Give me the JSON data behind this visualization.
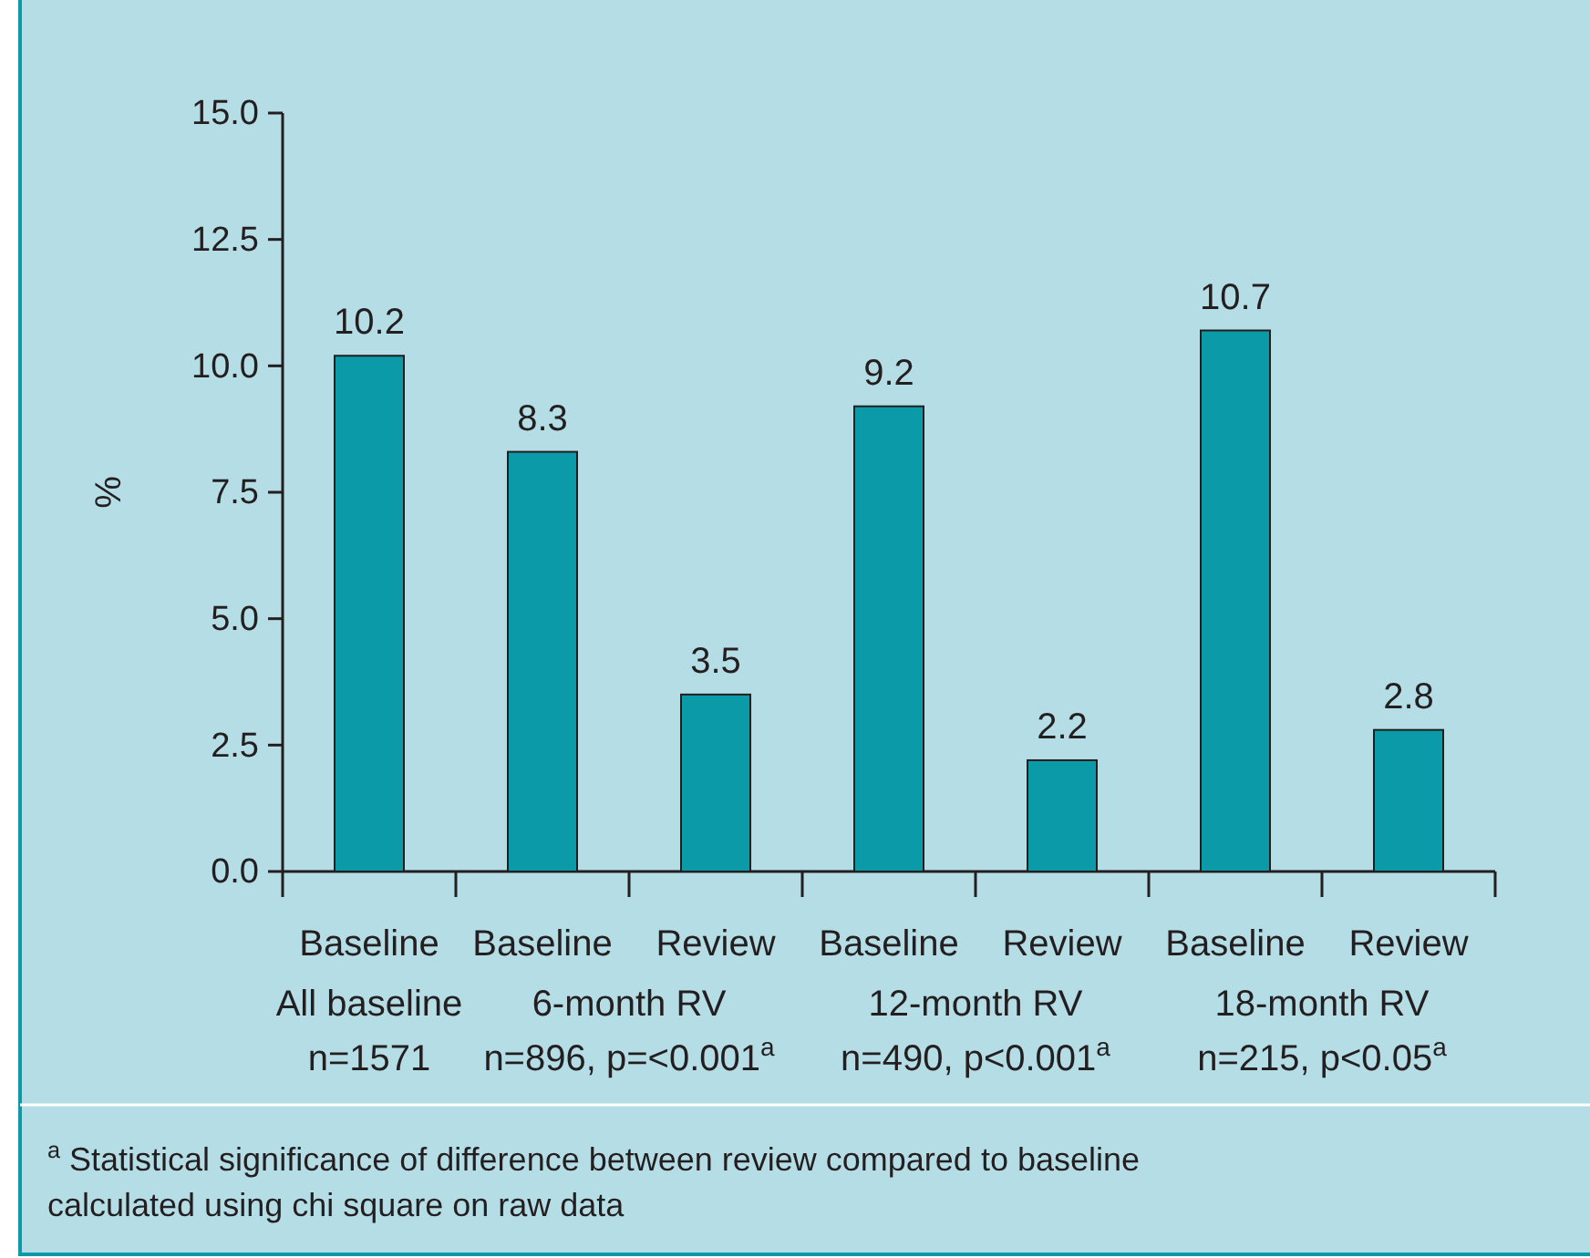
{
  "chart_data": {
    "type": "bar",
    "ylabel": "%",
    "categories": [
      "Baseline",
      "Baseline",
      "Review",
      "Baseline",
      "Review",
      "Baseline",
      "Review"
    ],
    "values": [
      10.2,
      8.3,
      3.5,
      9.2,
      2.2,
      10.7,
      2.8
    ],
    "color": "#0a9aa8",
    "ylim": [
      0,
      15
    ],
    "yticks": [
      {
        "value": 0,
        "label": "0.0"
      },
      {
        "value": 2.5,
        "label": "2.5"
      },
      {
        "value": 5,
        "label": "5.0"
      },
      {
        "value": 7.5,
        "label": "7.5"
      },
      {
        "value": 10,
        "label": "10.0"
      },
      {
        "value": 12.5,
        "label": "12.5"
      },
      {
        "value": 15,
        "label": "15.0"
      }
    ],
    "data_labels": true,
    "grid": false,
    "annotations": [
      "All baseline",
      "n=1571",
      "6-month RV",
      "n=896, p=<0.001$^{a}$",
      "12-month RV",
      "n=490, p<0.001$^{a}$",
      "18-month RV",
      "n=215, p<0.05$^{a}$",
      "$^{a}$ Statistical significance of difference between review compared to baseline",
      "calculated using chi square on raw data"
    ]
  }
}
